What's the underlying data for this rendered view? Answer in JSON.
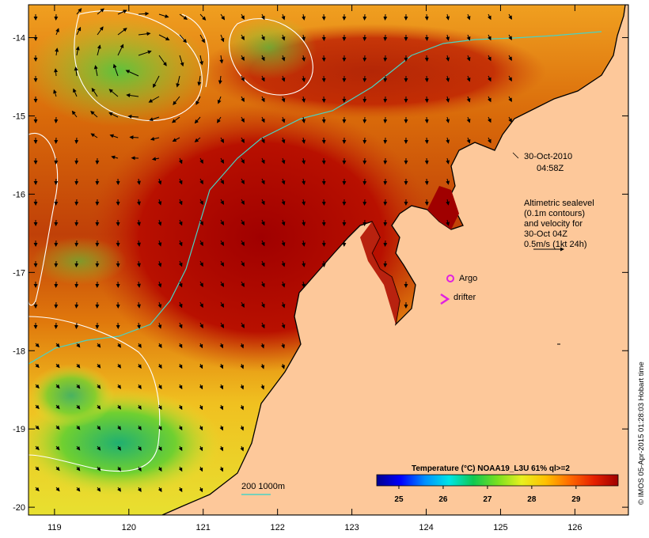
{
  "map": {
    "date": "30-Oct-2010",
    "time": "04:58Z",
    "altimetry_note": [
      "Altimetric sealevel",
      "(0.1m contours)",
      "and velocity for",
      "30-Oct 04Z",
      "0.5m/s (1kt 24h)"
    ],
    "argo_label": "Argo",
    "drifter_label": "drifter",
    "depth_contours_label": "200  1000m",
    "credit": "© IMOS 05-Apr-2015 01:28:03 Hobart time",
    "x_ticks": [
      "119",
      "120",
      "121",
      "122",
      "123",
      "124",
      "125",
      "126"
    ],
    "y_ticks": [
      "-14",
      "-15",
      "-16",
      "-17",
      "-18",
      "-19",
      "-20"
    ],
    "lon_range": [
      118.65,
      126.72
    ],
    "lat_range": [
      -20.1,
      -13.58
    ]
  },
  "legend": {
    "title": "Temperature (°C) NOAA19_L3U 61% ql>=2",
    "ticks": [
      "25",
      "26",
      "27",
      "28",
      "29"
    ]
  },
  "colors": {
    "land": "#fdc89a",
    "coast": "#000000",
    "isobath_200": "#49d3c4",
    "sealevel_contour": "#ffffff",
    "argo": "#e020e0",
    "drifter": "#e020e0"
  },
  "colorbar_stops": [
    "#00008f",
    "#0000ff",
    "#0090ff",
    "#00e5e5",
    "#10c850",
    "#78e020",
    "#e8f020",
    "#ffc000",
    "#ff6a00",
    "#e62000",
    "#a00000"
  ]
}
